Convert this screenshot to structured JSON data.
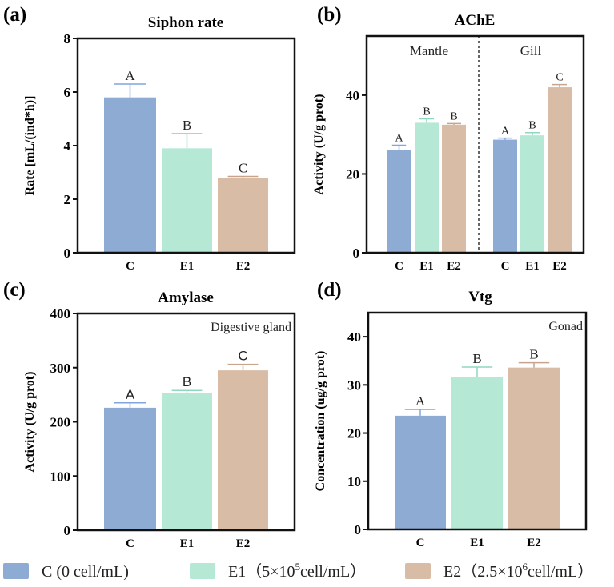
{
  "colors": {
    "C": "#8eabd3",
    "E1": "#b5e8d5",
    "E2": "#d9bca6",
    "C_err": "#7fa6df",
    "E1_err": "#8ed8bf",
    "E2_err": "#c9a48c"
  },
  "legend": [
    {
      "key": "C",
      "label": "C (0 cell/mL)"
    },
    {
      "key": "E1",
      "label_prefix": "E1（5×10",
      "sup": "5",
      "label_suffix": "cell/mL）"
    },
    {
      "key": "E2",
      "label_prefix": "E2（2.5×10",
      "sup": "6",
      "label_suffix": "cell/mL）"
    }
  ],
  "chart_data": [
    {
      "panel": "(a)",
      "type": "bar",
      "title": "Siphon rate",
      "ylabel": "Rate [mL/(ind*h)]",
      "ylim": [
        0,
        8
      ],
      "yticks": [
        0,
        2,
        4,
        6,
        8
      ],
      "annotation": "",
      "groups": [
        {
          "label": "",
          "categories": [
            "C",
            "E1",
            "E2"
          ],
          "values": [
            5.8,
            3.9,
            2.78
          ],
          "errors": [
            0.5,
            0.55,
            0.07
          ],
          "letters": [
            "A",
            "B",
            "C"
          ]
        }
      ]
    },
    {
      "panel": "(b)",
      "type": "bar",
      "title": "AChE",
      "ylabel": "Activity (U/g prot)",
      "ylim": [
        0,
        55
      ],
      "yticks": [
        0,
        20,
        40
      ],
      "annotation": "",
      "groups": [
        {
          "label": "Mantle",
          "categories": [
            "C",
            "E1",
            "E2"
          ],
          "values": [
            26,
            33,
            32.5
          ],
          "errors": [
            1.3,
            1.0,
            0.3
          ],
          "letters": [
            "A",
            "B",
            "B"
          ]
        },
        {
          "label": "Gill",
          "categories": [
            "C",
            "E1",
            "E2"
          ],
          "values": [
            28.7,
            29.8,
            42
          ],
          "errors": [
            0.4,
            0.7,
            0.7
          ],
          "letters": [
            "A",
            "B",
            "C"
          ]
        }
      ]
    },
    {
      "panel": "(c)",
      "type": "bar",
      "title": "Amylase",
      "ylabel": "Activity (U/g prot)",
      "ylim": [
        0,
        400
      ],
      "yticks": [
        0,
        100,
        200,
        300,
        400
      ],
      "annotation": "Digestive gland",
      "groups": [
        {
          "label": "",
          "categories": [
            "C",
            "E1",
            "E2"
          ],
          "values": [
            226,
            253,
            295
          ],
          "errors": [
            9,
            5,
            11
          ],
          "letters": [
            "A",
            "B",
            "C"
          ]
        }
      ]
    },
    {
      "panel": "(d)",
      "type": "bar",
      "title": "Vtg",
      "ylabel": "Concentration (ug/g prot)",
      "ylim": [
        0,
        45
      ],
      "yticks": [
        0,
        10,
        20,
        30,
        40
      ],
      "annotation": "Gonad",
      "groups": [
        {
          "label": "",
          "categories": [
            "C",
            "E1",
            "E2"
          ],
          "values": [
            23.6,
            31.7,
            33.6
          ],
          "errors": [
            1.3,
            2.0,
            1.0
          ],
          "letters": [
            "A",
            "B",
            "B"
          ]
        }
      ]
    }
  ]
}
